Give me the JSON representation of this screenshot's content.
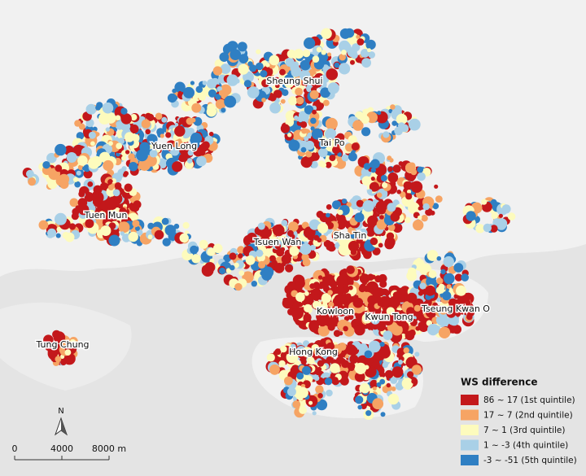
{
  "map": {
    "places": [
      "Sheung Shui",
      "Yuen Long",
      "Tai Po",
      "Tuen Mun",
      "Tsuen Wan",
      "Sha Tin",
      "Kowloon",
      "Kwun Tong",
      "Tseung Kwan O",
      "Hong Kong",
      "Tung Chung"
    ],
    "legend": {
      "title": "WS difference",
      "items": [
        {
          "label": "86 ~ 17 (1st quintile)",
          "color": "#c3181b"
        },
        {
          "label": "17 ~ 7 (2nd quintile)",
          "color": "#f6a464"
        },
        {
          "label": "7 ~ 1 (3rd quintile)",
          "color": "#fdfbbd"
        },
        {
          "label": "1 ~ -3 (4th quintile)",
          "color": "#a9d0e7"
        },
        {
          "label": "-3 ~ -51 (5th quintile)",
          "color": "#2f7fc3"
        }
      ]
    },
    "scale_bar": {
      "labels": [
        "0",
        "4000",
        "8000 m"
      ]
    },
    "north": "N"
  }
}
